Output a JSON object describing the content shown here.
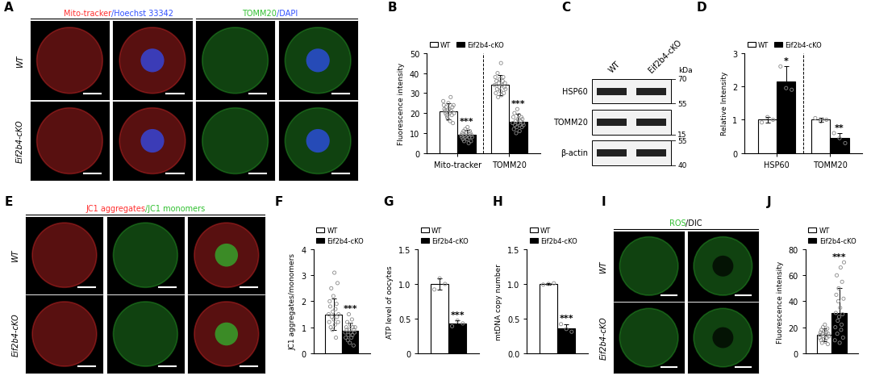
{
  "chart_data": [
    {
      "label": "B",
      "type": "bar",
      "categories": [
        "Mito-tracker",
        "TOMM20"
      ],
      "y_label": "Fluorescence intensity",
      "ylim": [
        0,
        50
      ],
      "yticks": [
        0,
        10,
        20,
        30,
        40,
        50
      ],
      "legend": "top",
      "series": [
        {
          "name": "WT",
          "color": "#ffffff",
          "values": [
            21,
            34
          ],
          "sd": [
            4,
            5
          ],
          "points": [
            [
              26,
              24,
              22,
              21,
              20,
              23,
              19,
              18,
              17,
              25,
              22,
              20,
              16,
              28,
              21,
              19,
              23,
              15,
              24,
              20
            ],
            [
              34,
              38,
              30,
              36,
              32,
              40,
              28,
              35,
              33,
              37,
              31,
              45,
              29,
              34,
              36,
              38,
              30,
              33,
              35,
              32
            ]
          ]
        },
        {
          "name": "Eif2b4-cKO",
          "color": "#000000",
          "values": [
            9,
            15.5
          ],
          "sd": [
            2.5,
            4
          ],
          "points": [
            [
              9,
              8,
              10,
              7,
              11,
              6,
              9,
              12,
              8,
              10,
              7,
              13,
              9,
              5,
              8,
              11,
              10,
              6,
              9,
              8
            ],
            [
              15,
              18,
              12,
              20,
              14,
              16,
              10,
              13,
              22,
              17,
              15,
              19,
              11,
              14,
              16,
              18,
              13,
              17,
              15,
              14
            ]
          ]
        }
      ],
      "annotations": [
        {
          "text": "***",
          "category": 0,
          "series": 1
        },
        {
          "text": "***",
          "category": 1,
          "series": 1
        }
      ]
    },
    {
      "label": "D",
      "type": "bar",
      "categories": [
        "HSP60",
        "TOMM20"
      ],
      "y_label": "Relative Intensity",
      "ylim": [
        0,
        3
      ],
      "yticks": [
        0,
        1,
        2,
        3
      ],
      "legend": "top",
      "series": [
        {
          "name": "WT",
          "color": "#ffffff",
          "values": [
            1.0,
            1.0
          ],
          "sd": [
            0.08,
            0.06
          ],
          "points": [
            [
              0.92,
              1.08,
              1.0
            ],
            [
              1.05,
              0.95,
              1.0
            ]
          ]
        },
        {
          "name": "Eif2b4-cKO",
          "color": "#000000",
          "values": [
            2.15,
            0.45
          ],
          "sd": [
            0.45,
            0.15
          ],
          "points": [
            [
              2.6,
              1.95,
              1.9
            ],
            [
              0.6,
              0.45,
              0.3
            ]
          ]
        }
      ],
      "annotations": [
        {
          "text": "*",
          "category": 0,
          "series": 1
        },
        {
          "text": "**",
          "category": 1,
          "series": 1
        }
      ]
    },
    {
      "label": "F",
      "type": "bar",
      "categories": [
        null
      ],
      "y_label": "JC1 aggregates/monomers",
      "ylim": [
        0,
        4
      ],
      "yticks": [
        0,
        1,
        2,
        3,
        4
      ],
      "legend": "top",
      "series": [
        {
          "name": "WT",
          "color": "#ffffff",
          "values": [
            1.5
          ],
          "sd": [
            0.6
          ],
          "points": [
            [
              1.5,
              1.2,
              2.0,
              1.8,
              1.0,
              2.5,
              1.4,
              0.9,
              1.6,
              2.2,
              1.3,
              3.1,
              1.1,
              1.7,
              0.6,
              1.9,
              1.4,
              2.7,
              1.2,
              1.5
            ]
          ]
        },
        {
          "name": "Eif2b4-cKO",
          "color": "#000000",
          "values": [
            0.85
          ],
          "sd": [
            0.33
          ],
          "points": [
            [
              0.8,
              0.6,
              1.0,
              0.9,
              1.2,
              0.5,
              0.7,
              1.5,
              0.9,
              0.4,
              1.1,
              0.8,
              0.6,
              1.3,
              0.7,
              1.0,
              0.3,
              0.9,
              0.8,
              1.0
            ]
          ]
        }
      ],
      "annotations": [
        {
          "text": "***",
          "category": 0,
          "series": 1
        }
      ]
    },
    {
      "label": "G",
      "type": "bar",
      "categories": [
        null
      ],
      "y_label": "ATP level of oocytes",
      "ylim": [
        0,
        1.5
      ],
      "yticks": [
        0,
        0.5,
        {
          "value": 1,
          "label": "1.0"
        },
        1.5
      ],
      "legend": "top",
      "series": [
        {
          "name": "WT",
          "color": "#ffffff",
          "values": [
            1.0
          ],
          "sd": [
            0.08
          ],
          "points": [
            [
              0.92,
              1.08,
              1.0
            ]
          ]
        },
        {
          "name": "Eif2b4-cKO",
          "color": "#000000",
          "values": [
            0.43
          ],
          "sd": [
            0.04
          ],
          "points": [
            [
              0.39,
              0.47,
              0.43
            ]
          ]
        }
      ],
      "annotations": [
        {
          "text": "***",
          "category": 0,
          "series": 1
        }
      ]
    },
    {
      "label": "H",
      "type": "bar",
      "categories": [
        null
      ],
      "y_label": "mtDNA copy number",
      "ylim": [
        0,
        1.5
      ],
      "yticks": [
        {
          "value": 0,
          "label": "0.0"
        },
        0.5,
        {
          "value": 1,
          "label": "1.0"
        },
        1.5
      ],
      "legend": "top",
      "series": [
        {
          "name": "WT",
          "color": "#ffffff",
          "values": [
            1.0
          ],
          "sd": [
            0.01
          ],
          "points": [
            [
              0.99,
              1.0,
              1.01
            ]
          ]
        },
        {
          "name": "Eif2b4-cKO",
          "color": "#000000",
          "values": [
            0.36
          ],
          "sd": [
            0.06
          ],
          "points": [
            [
              0.42,
              0.35,
              0.31
            ]
          ]
        }
      ],
      "annotations": [
        {
          "text": "***",
          "category": 0,
          "series": 1
        }
      ]
    },
    {
      "label": "J",
      "type": "bar",
      "categories": [
        null
      ],
      "y_label": "Fluorescence intensity",
      "ylim": [
        0,
        80
      ],
      "yticks": [
        0,
        20,
        40,
        60,
        80
      ],
      "legend": "top",
      "series": [
        {
          "name": "WT",
          "color": "#ffffff",
          "values": [
            14
          ],
          "sd": [
            5
          ],
          "points": [
            [
              12,
              14,
              16,
              10,
              18,
              8,
              15,
              20,
              13,
              11,
              17,
              22,
              9,
              14,
              16,
              12,
              19,
              7,
              15,
              13
            ]
          ]
        },
        {
          "name": "Eif2b4-cKO",
          "color": "#000000",
          "values": [
            31
          ],
          "sd": [
            19
          ],
          "points": [
            [
              10,
              20,
              31,
              45,
              60,
              15,
              25,
              40,
              50,
              28,
              8,
              35,
              66,
              18,
              22,
              55,
              30,
              12,
              42,
              70
            ]
          ]
        }
      ],
      "annotations": [
        {
          "text": "***",
          "category": 0,
          "series": 1
        }
      ]
    }
  ],
  "images": [
    {
      "label": "A",
      "row_labels": [
        "WT",
        "Eif2b4-cKO"
      ],
      "headers": [
        {
          "columns": 2,
          "segments": [
            {
              "text": "Mito-tracker",
              "color": "#ff3030"
            },
            {
              "text": "/Hoechst 33342",
              "color": "#3050ff"
            }
          ]
        },
        {
          "columns": 2,
          "segments": [
            {
              "text": "TOMM20",
              "color": "#30c030"
            },
            {
              "text": "/DAPI",
              "color": "#3050ff"
            }
          ]
        }
      ]
    },
    {
      "label": "E",
      "row_labels": [
        "WT",
        "Eif2b4-cKO"
      ],
      "headers": [
        {
          "columns": 3,
          "segments": [
            {
              "text": "JC1 aggregates",
              "color": "#ff3030"
            },
            {
              "text": "/JC1 monomers",
              "color": "#30c030"
            }
          ]
        }
      ]
    },
    {
      "label": "I",
      "row_labels": [
        "WT",
        "Eif2b4-cKO"
      ],
      "headers": [
        {
          "columns": 2,
          "segments": [
            {
              "text": "ROS",
              "color": "#30c030"
            },
            {
              "text": "/DIC",
              "color": "#000000"
            }
          ]
        }
      ]
    }
  ],
  "blot": {
    "label": "C",
    "lanes": [
      "WT",
      "Eif2b4-cKO"
    ],
    "unit": "kDa",
    "rows": [
      {
        "name": "HSP60",
        "markers": [
          70,
          55
        ]
      },
      {
        "name": "TOMM20",
        "markers": [
          15
        ]
      },
      {
        "name": "β-actin",
        "markers": [
          55,
          40
        ]
      }
    ]
  }
}
